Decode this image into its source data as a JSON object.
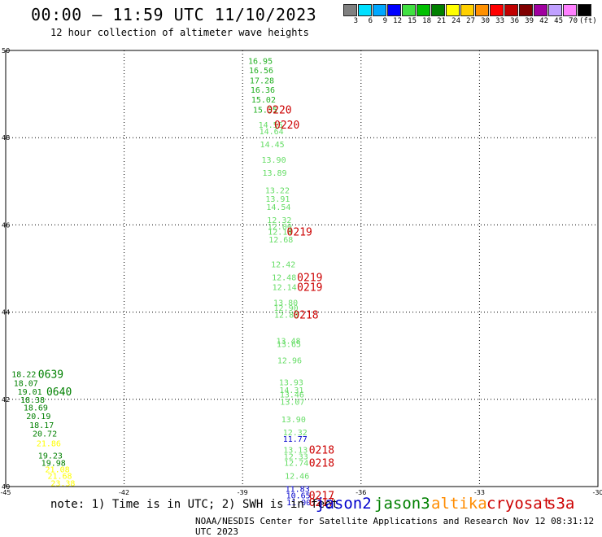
{
  "header": {
    "title": "00:00 – 11:59 UTC 11/10/2023",
    "subtitle": "12 hour collection of altimeter wave heights"
  },
  "colorbar": {
    "colors": [
      "#808080",
      "#00e0ff",
      "#00a8ff",
      "#0000ff",
      "#40e040",
      "#00c000",
      "#008000",
      "#ffff00",
      "#ffd000",
      "#ff9000",
      "#ff0000",
      "#c00000",
      "#800000",
      "#a000a0",
      "#c0a0ff",
      "#ff80ff",
      "#000000"
    ],
    "labels": [
      "3",
      "6",
      "9",
      "12",
      "15",
      "18",
      "21",
      "24",
      "27",
      "30",
      "33",
      "36",
      "39",
      "42",
      "45",
      "70"
    ],
    "unit": "(ft)"
  },
  "axes": {
    "y_ticks": [
      "50",
      "48",
      "46",
      "44",
      "42",
      "40"
    ],
    "x_ticks": [
      "-45",
      "-42",
      "-39",
      "-36",
      "-33",
      "-30"
    ]
  },
  "footer": {
    "note": "note:  1) Time is in UTC;  2) SWH is in feet",
    "credit": "NOAA/NESDIS Center for Satellite Applications and Research    Nov 12 08:31:12 UTC 2023"
  },
  "legend": [
    {
      "label": "jason2",
      "color": "#0000cc"
    },
    {
      "label": "jason3",
      "color": "#008000"
    },
    {
      "label": "altika",
      "color": "#ff8c00"
    },
    {
      "label": "cryosat",
      "color": "#cc0000"
    },
    {
      "label": "s3a",
      "color": "#cc0000"
    }
  ],
  "tracks": [
    {
      "sat": "jason3",
      "color": "#22b022",
      "values": [
        {
          "v": "16.95",
          "lon": -38.86,
          "lat": 49.77
        },
        {
          "v": "16.56",
          "lon": -38.84,
          "lat": 49.55
        },
        {
          "v": "17.28",
          "lon": -38.82,
          "lat": 49.32
        },
        {
          "v": "16.36",
          "lon": -38.8,
          "lat": 49.1
        },
        {
          "v": "15.02",
          "lon": -38.78,
          "lat": 48.88
        },
        {
          "v": "15.35",
          "lon": -38.74,
          "lat": 48.65
        }
      ]
    },
    {
      "sat": "jason3",
      "color": "#66dd66",
      "values": [
        {
          "v": "14.55",
          "lon": -38.6,
          "lat": 48.3
        },
        {
          "v": "14.64",
          "lon": -38.58,
          "lat": 48.15
        },
        {
          "v": "14.45",
          "lon": -38.56,
          "lat": 47.85
        },
        {
          "v": "13.90",
          "lon": -38.52,
          "lat": 47.5
        },
        {
          "v": "13.89",
          "lon": -38.5,
          "lat": 47.2
        },
        {
          "v": "13.22",
          "lon": -38.43,
          "lat": 46.8
        },
        {
          "v": "13.91",
          "lon": -38.42,
          "lat": 46.6
        },
        {
          "v": "14.54",
          "lon": -38.4,
          "lat": 46.42
        },
        {
          "v": "12.32",
          "lon": -38.38,
          "lat": 46.12
        },
        {
          "v": "12.00",
          "lon": -38.37,
          "lat": 45.97
        },
        {
          "v": "12.14",
          "lon": -38.36,
          "lat": 45.85
        },
        {
          "v": "12.68",
          "lon": -38.34,
          "lat": 45.67
        },
        {
          "v": "12.42",
          "lon": -38.28,
          "lat": 45.1
        },
        {
          "v": "12.48",
          "lon": -38.26,
          "lat": 44.8
        },
        {
          "v": "12.14",
          "lon": -38.25,
          "lat": 44.58
        },
        {
          "v": "13.80",
          "lon": -38.22,
          "lat": 44.23
        },
        {
          "v": "12.90",
          "lon": -38.21,
          "lat": 44.1
        },
        {
          "v": "12.80",
          "lon": -38.2,
          "lat": 43.95
        },
        {
          "v": "13.48",
          "lon": -38.15,
          "lat": 43.35
        },
        {
          "v": "13.65",
          "lon": -38.14,
          "lat": 43.27
        },
        {
          "v": "12.96",
          "lon": -38.12,
          "lat": 42.9
        },
        {
          "v": "13.93",
          "lon": -38.08,
          "lat": 42.4
        },
        {
          "v": "14.31",
          "lon": -38.07,
          "lat": 42.22
        },
        {
          "v": "13.46",
          "lon": -38.06,
          "lat": 42.12
        },
        {
          "v": "13.07",
          "lon": -38.05,
          "lat": 41.95
        },
        {
          "v": "13.90",
          "lon": -38.02,
          "lat": 41.55
        },
        {
          "v": "12.32",
          "lon": -37.98,
          "lat": 41.25
        },
        {
          "v": "13.13",
          "lon": -37.97,
          "lat": 40.85
        },
        {
          "v": "12.33",
          "lon": -37.96,
          "lat": 40.7
        },
        {
          "v": "12.74",
          "lon": -37.95,
          "lat": 40.55
        },
        {
          "v": "12.46",
          "lon": -37.93,
          "lat": 40.25
        }
      ]
    },
    {
      "sat": "jason2",
      "color": "#0000cc",
      "values": [
        {
          "v": "11.77",
          "lon": -37.98,
          "lat": 41.1
        },
        {
          "v": "11.83",
          "lon": -37.92,
          "lat": 39.95
        },
        {
          "v": "10.65",
          "lon": -37.9,
          "lat": 39.8
        },
        {
          "v": "11.00",
          "lon": -37.89,
          "lat": 39.65
        }
      ]
    },
    {
      "sat": "jason3",
      "color": "#008000",
      "values": [
        {
          "v": "18.22",
          "lon": -44.85,
          "lat": 42.58
        },
        {
          "v": "18.07",
          "lon": -44.8,
          "lat": 42.38
        },
        {
          "v": "19.01",
          "lon": -44.7,
          "lat": 42.18
        },
        {
          "v": "18.38",
          "lon": -44.63,
          "lat": 42.0
        },
        {
          "v": "18.69",
          "lon": -44.55,
          "lat": 41.82
        },
        {
          "v": "20.19",
          "lon": -44.48,
          "lat": 41.62
        },
        {
          "v": "18.17",
          "lon": -44.4,
          "lat": 41.42
        },
        {
          "v": "20.72",
          "lon": -44.32,
          "lat": 41.22
        },
        {
          "v": "19.23",
          "lon": -44.18,
          "lat": 40.72
        },
        {
          "v": "19.98",
          "lon": -44.1,
          "lat": 40.55
        }
      ]
    },
    {
      "sat": "altika",
      "color": "#ffff00",
      "values": [
        {
          "v": "21.86",
          "lon": -44.22,
          "lat": 41.0
        },
        {
          "v": "21.08",
          "lon": -44.0,
          "lat": 40.4
        },
        {
          "v": "21.68",
          "lon": -43.94,
          "lat": 40.25
        },
        {
          "v": "23.38",
          "lon": -43.86,
          "lat": 40.08
        }
      ]
    }
  ],
  "time_labels": [
    {
      "t": "0220",
      "color": "#cc0000",
      "lon": -38.4,
      "lat": 48.65
    },
    {
      "t": "0220",
      "color": "#cc0000",
      "lon": -38.2,
      "lat": 48.3
    },
    {
      "t": "0219",
      "color": "#cc0000",
      "lon": -37.88,
      "lat": 45.85
    },
    {
      "t": "0219",
      "color": "#cc0000",
      "lon": -37.62,
      "lat": 44.8
    },
    {
      "t": "0219",
      "color": "#cc0000",
      "lon": -37.62,
      "lat": 44.58
    },
    {
      "t": "0218",
      "color": "#cc0000",
      "lon": -37.72,
      "lat": 43.95
    },
    {
      "t": "0218",
      "color": "#cc0000",
      "lon": -37.32,
      "lat": 40.85
    },
    {
      "t": "0218",
      "color": "#cc0000",
      "lon": -37.32,
      "lat": 40.55
    },
    {
      "t": "0217",
      "color": "#cc0000",
      "lon": -37.32,
      "lat": 39.8
    },
    {
      "t": "0217",
      "color": "#cc0000",
      "lon": -37.32,
      "lat": 39.65
    },
    {
      "t": "0639",
      "color": "#008000",
      "lon": -44.18,
      "lat": 42.58
    },
    {
      "t": "0640",
      "color": "#008000",
      "lon": -43.97,
      "lat": 42.18
    }
  ]
}
